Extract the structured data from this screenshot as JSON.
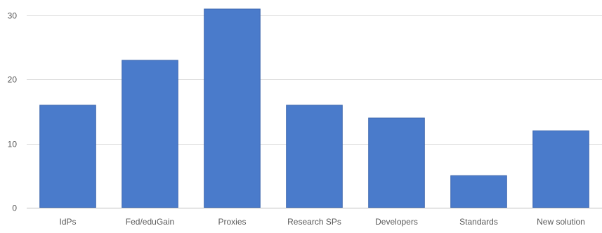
{
  "chart_data": {
    "type": "bar",
    "title": "",
    "xlabel": "",
    "ylabel": "",
    "categories": [
      "IdPs",
      "Fed/eduGain",
      "Proxies",
      "Research SPs",
      "Developers",
      "Standards",
      "New solution"
    ],
    "series": [
      {
        "values": [
          16,
          23,
          31,
          16,
          14,
          5,
          12
        ]
      }
    ],
    "ylim": [
      0,
      30
    ],
    "yticks": [
      0,
      10,
      20,
      30
    ],
    "grid": true,
    "legend": "none",
    "colors": {
      "bar": "#4A7BCB",
      "bar_edge": "#3D67AE",
      "grid": "#D9D9D9",
      "axis": "#BFBFBF",
      "text": "#595959"
    }
  }
}
